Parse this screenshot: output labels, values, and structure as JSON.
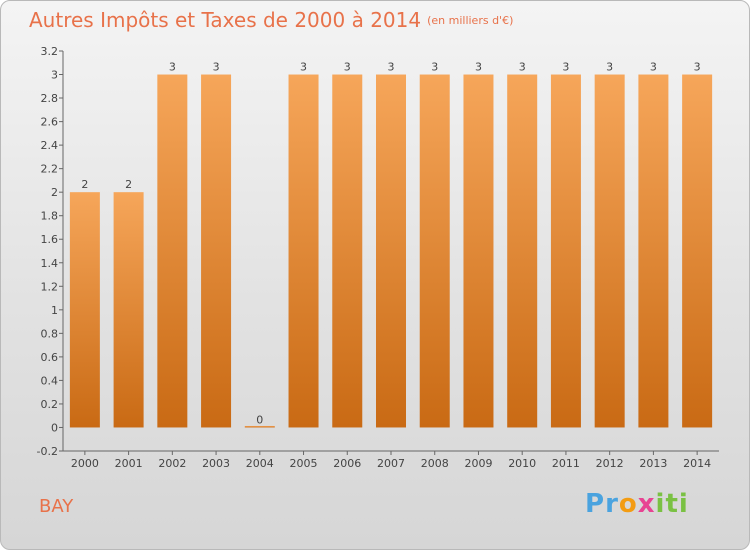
{
  "title": {
    "main": "Autres Impôts et Taxes de 2000 à 2014",
    "subtitle": "(en milliers d'€)"
  },
  "commune": "BAY",
  "logo": {
    "letters": [
      "P",
      "r",
      "o",
      "x",
      "i",
      "t",
      "i"
    ],
    "colors": [
      "#4aa3df",
      "#4aa3df",
      "#f39c12",
      "#e84393",
      "#7ac143",
      "#7ac143",
      "#7ac143"
    ]
  },
  "colors": {
    "bar_light": "#f6a65a",
    "bar_dark": "#c96a14",
    "title": "#e8724a"
  },
  "chart_data": {
    "type": "bar",
    "title": "Autres Impôts et Taxes de 2000 à 2014",
    "subtitle": "(en milliers d'€)",
    "categories": [
      "2000",
      "2001",
      "2002",
      "2003",
      "2004",
      "2005",
      "2006",
      "2007",
      "2008",
      "2009",
      "2010",
      "2011",
      "2012",
      "2013",
      "2014"
    ],
    "values": [
      2,
      2,
      3,
      3,
      0,
      3,
      3,
      3,
      3,
      3,
      3,
      3,
      3,
      3,
      3
    ],
    "data_labels": [
      "2",
      "2",
      "3",
      "3",
      "0",
      "3",
      "3",
      "3",
      "3",
      "3",
      "3",
      "3",
      "3",
      "3",
      "3"
    ],
    "ylim": [
      -0.2,
      3.2
    ],
    "yticks": [
      -0.2,
      0,
      0.2,
      0.4,
      0.6,
      0.8,
      1,
      1.2,
      1.4,
      1.6,
      1.8,
      2,
      2.2,
      2.4,
      2.6,
      2.8,
      3,
      3.2
    ],
    "ytick_labels": [
      "-0.2",
      "0",
      "0.2",
      "0.4",
      "0.6",
      "0.8",
      "1",
      "1.2",
      "1.4",
      "1.6",
      "1.8",
      "2",
      "2.2",
      "2.4",
      "2.6",
      "2.8",
      "3",
      "3.2"
    ],
    "xlabel": "",
    "ylabel": "",
    "grid": false,
    "legend": "none"
  }
}
